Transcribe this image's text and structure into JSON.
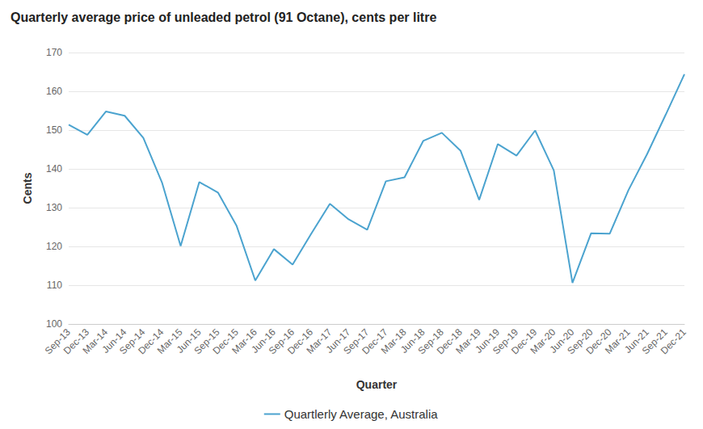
{
  "chart_data": {
    "type": "line",
    "title": "Quarterly average price of unleaded petrol (91 Octane), cents per litre",
    "xlabel": "Quarter",
    "ylabel": "Cents",
    "categories": [
      "Sep-13",
      "Dec-13",
      "Mar-14",
      "Jun-14",
      "Sep-14",
      "Dec-14",
      "Mar-15",
      "Jun-15",
      "Sep-15",
      "Dec-15",
      "Mar-16",
      "Jun-16",
      "Sep-16",
      "Dec-16",
      "Mar-17",
      "Jun-17",
      "Sep-17",
      "Dec-17",
      "Mar-18",
      "Jun-18",
      "Sep-18",
      "Dec-18",
      "Mar-19",
      "Jun-19",
      "Sep-19",
      "Dec-19",
      "Mar-20",
      "Jun-20",
      "Sep-20",
      "Dec-20",
      "Mar-21",
      "Jun-21",
      "Sep-21",
      "Dec-21"
    ],
    "series": [
      {
        "name": "Quartlerly Average, Australia",
        "color": "#4ba3cf",
        "values": [
          151.4,
          148.8,
          154.8,
          153.7,
          148.0,
          136.5,
          120.1,
          136.6,
          133.9,
          125.3,
          111.2,
          119.3,
          115.3,
          123.3,
          131.0,
          127.0,
          124.3,
          136.8,
          137.8,
          147.2,
          149.3,
          144.7,
          132.0,
          146.4,
          143.4,
          149.9,
          139.6,
          110.6,
          123.4,
          123.3,
          134.5,
          143.8,
          154.0,
          164.4
        ]
      }
    ],
    "ylim": [
      100,
      170
    ],
    "yticks": [
      100,
      110,
      120,
      130,
      140,
      150,
      160,
      170
    ],
    "grid": true,
    "legend": "bottom"
  }
}
